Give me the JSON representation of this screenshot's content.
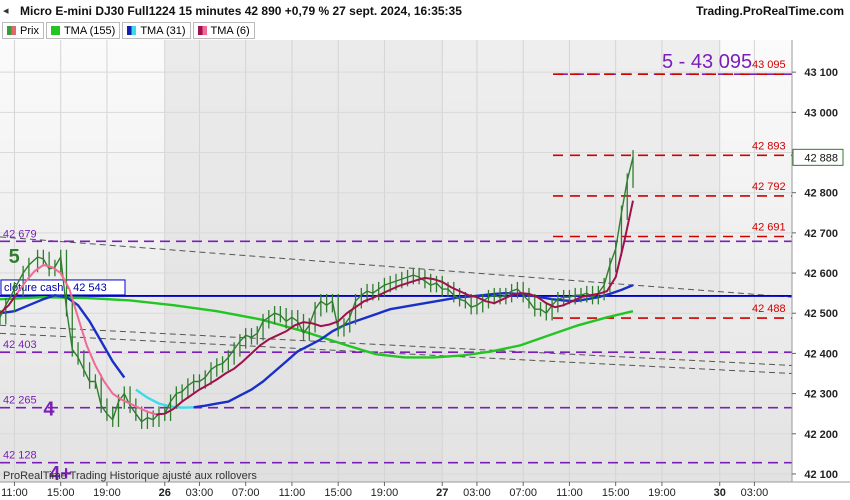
{
  "header": {
    "title": "Micro E-mini DJ30 Full1224 15 minutes 42 890 +0,79 % 27 sept. 2024, 16:35:35",
    "site": "Trading.ProRealTime.com"
  },
  "legend": [
    {
      "label": "Prix",
      "color": "#3c9a3c"
    },
    {
      "label": "TMA (155)",
      "color": "#22c522"
    },
    {
      "label": "TMA (31)",
      "color": "#1020b0"
    },
    {
      "label": "TMA (6)",
      "color": "#a0104a"
    }
  ],
  "footer": "ProRealTime Trading Historique ajusté aux rollovers",
  "colors": {
    "price": "#2f7d2f",
    "tma155": "#22c522",
    "tma31": "#1a2fc8",
    "tma31_cyan": "#3fd9ee",
    "tma6": "#a0104a",
    "tma6_pink": "#f06a96",
    "purple": "#7b1fb8",
    "red": "#d00000",
    "blue": "#0000cc"
  },
  "chart_data": {
    "type": "line",
    "instrument": "Micro E-mini DJ30 Full1224",
    "timeframe": "15 minutes",
    "ylim": [
      42080,
      43180
    ],
    "y_ticks": [
      42100,
      42200,
      42300,
      42400,
      42500,
      42600,
      42700,
      42800,
      42900,
      43000,
      43100
    ],
    "y_tick_labels": [
      "42 100",
      "42 200",
      "42 300",
      "42 400",
      "42 500",
      "42 600",
      "42 700",
      "42 800",
      "42 900",
      "43 000",
      "43 100"
    ],
    "x_ticks": [
      {
        "label": "11:00",
        "t": 0
      },
      {
        "label": "15:00",
        "t": 16
      },
      {
        "label": "19:00",
        "t": 32
      },
      {
        "label": "26",
        "t": 52,
        "bold": true
      },
      {
        "label": "03:00",
        "t": 64
      },
      {
        "label": "07:00",
        "t": 80
      },
      {
        "label": "11:00",
        "t": 96
      },
      {
        "label": "15:00",
        "t": 112
      },
      {
        "label": "19:00",
        "t": 128
      },
      {
        "label": "27",
        "t": 148,
        "bold": true
      },
      {
        "label": "03:00",
        "t": 160
      },
      {
        "label": "07:00",
        "t": 176
      },
      {
        "label": "11:00",
        "t": 192
      },
      {
        "label": "15:00",
        "t": 208
      },
      {
        "label": "19:00",
        "t": 224
      },
      {
        "label": "30",
        "t": 244,
        "bold": true
      },
      {
        "label": "03:00",
        "t": 256
      }
    ],
    "x_range": [
      -5,
      269
    ],
    "session_bands": [
      {
        "t0": 52,
        "t1": 148,
        "shade": "#dedede"
      },
      {
        "t0": 148,
        "t1": 244,
        "shade": "#e3e3e3"
      }
    ],
    "last_price": {
      "value": 42888,
      "label": "42 888"
    },
    "cash_close": {
      "value": 42543,
      "label": "clôture cash -  42 543"
    },
    "purple_levels": [
      {
        "value": 42679,
        "label": "42 679",
        "t_start": -5
      },
      {
        "value": 42403,
        "label": "42 403",
        "t_start": -5
      },
      {
        "value": 42265,
        "label": "42 265",
        "t_start": -5
      },
      {
        "value": 42128,
        "label": "42 128",
        "t_start": -5
      },
      {
        "value": 43095,
        "label": "5 - 43 095",
        "t_start": 188
      }
    ],
    "red_levels": [
      {
        "value": 43095,
        "label": "43 095"
      },
      {
        "value": 42893,
        "label": "42 893"
      },
      {
        "value": 42792,
        "label": "42 792"
      },
      {
        "value": 42691,
        "label": "42 691"
      },
      {
        "value": 42488,
        "label": "42 488"
      }
    ],
    "wave_labels": [
      {
        "text": "5",
        "t": -2,
        "y": 42645,
        "color": "#2f7d2f"
      },
      {
        "text": "4",
        "t": 10,
        "y": 42265,
        "color": "#7b1fb8"
      },
      {
        "text": "4+",
        "t": 12,
        "y": 42105,
        "color": "#7b1fb8"
      }
    ],
    "trendlines": [
      {
        "t0": -5,
        "y0": 42690,
        "t1": 269,
        "y1": 42540
      },
      {
        "t0": -5,
        "y0": 42470,
        "t1": 269,
        "y1": 42370
      },
      {
        "t0": -5,
        "y0": 42450,
        "t1": 269,
        "y1": 42350
      }
    ],
    "series": [
      {
        "key": "price",
        "name": "Prix",
        "x": [
          -5,
          -3,
          0,
          3,
          5,
          8,
          10,
          12,
          14,
          16,
          18,
          20,
          22,
          24,
          26,
          28,
          30,
          32,
          34,
          36,
          38,
          40,
          42,
          44,
          46,
          48,
          50,
          52,
          54,
          56,
          58,
          60,
          62,
          64,
          66,
          68,
          70,
          72,
          74,
          76,
          78,
          80,
          82,
          84,
          86,
          88,
          90,
          92,
          94,
          96,
          98,
          100,
          102,
          104,
          106,
          108,
          110,
          112,
          114,
          116,
          118,
          120,
          122,
          124,
          126,
          128,
          130,
          132,
          134,
          136,
          138,
          140,
          142,
          144,
          146,
          148,
          150,
          152,
          154,
          156,
          158,
          160,
          162,
          164,
          166,
          168,
          170,
          172,
          174,
          176,
          178,
          180,
          182,
          184,
          186,
          188,
          190,
          192,
          194,
          196,
          198,
          200,
          202,
          204,
          206,
          208,
          210,
          212,
          214
        ],
        "values": [
          42490,
          42520,
          42560,
          42600,
          42620,
          42640,
          42635,
          42610,
          42615,
          42640,
          42510,
          42410,
          42390,
          42360,
          42330,
          42330,
          42270,
          42250,
          42235,
          42280,
          42300,
          42270,
          42250,
          42230,
          42240,
          42235,
          42250,
          42250,
          42280,
          42300,
          42305,
          42320,
          42330,
          42330,
          42340,
          42360,
          42370,
          42375,
          42390,
          42410,
          42430,
          42445,
          42440,
          42450,
          42480,
          42490,
          42500,
          42495,
          42480,
          42490,
          42480,
          42450,
          42470,
          42510,
          42530,
          42520,
          42530,
          42460,
          42470,
          42490,
          42530,
          42545,
          42555,
          42550,
          42560,
          42570,
          42575,
          42580,
          42585,
          42590,
          42595,
          42590,
          42580,
          42570,
          42575,
          42560,
          42560,
          42545,
          42535,
          42530,
          42515,
          42520,
          42530,
          42540,
          42545,
          42540,
          42545,
          42555,
          42560,
          42545,
          42530,
          42510,
          42510,
          42500,
          42520,
          42535,
          42540,
          42540,
          42545,
          42545,
          42550,
          42540,
          42550,
          42570,
          42620,
          42660,
          42750,
          42830,
          42888
        ]
      },
      {
        "key": "tma155",
        "name": "TMA (155)",
        "x": [
          -5,
          10,
          25,
          40,
          55,
          70,
          85,
          100,
          115,
          125,
          135,
          145,
          155,
          165,
          175,
          185,
          195,
          205,
          214
        ],
        "values": [
          42535,
          42540,
          42538,
          42532,
          42520,
          42505,
          42485,
          42455,
          42420,
          42398,
          42390,
          42390,
          42395,
          42405,
          42420,
          42445,
          42470,
          42490,
          42505
        ]
      },
      {
        "key": "tma31",
        "name": "TMA (31)",
        "x": [
          -5,
          0,
          5,
          10,
          14,
          18,
          22,
          26,
          30,
          34,
          38,
          42,
          46,
          50,
          54,
          58,
          62,
          66,
          70,
          74,
          78,
          82,
          86,
          90,
          94,
          98,
          102,
          106,
          110,
          114,
          118,
          122,
          126,
          130,
          134,
          138,
          142,
          146,
          150,
          154,
          158,
          162,
          166,
          170,
          174,
          178,
          182,
          186,
          190,
          194,
          198,
          202,
          206,
          210,
          214
        ],
        "values": [
          42500,
          42505,
          42520,
          42535,
          42545,
          42540,
          42520,
          42480,
          42430,
          42380,
          42340,
          42310,
          42290,
          42275,
          42268,
          42265,
          42266,
          42270,
          42275,
          42280,
          42295,
          42310,
          42330,
          42355,
          42380,
          42405,
          42420,
          42435,
          42455,
          42470,
          42480,
          42490,
          42500,
          42510,
          42515,
          42520,
          42525,
          42530,
          42535,
          42540,
          42542,
          42545,
          42548,
          42550,
          42548,
          42545,
          42540,
          42535,
          42532,
          42530,
          42535,
          42540,
          42548,
          42558,
          42570
        ],
        "cyan_from": 40,
        "cyan_to": 62
      },
      {
        "key": "tma6",
        "name": "TMA (6)",
        "x": [
          -5,
          -2,
          1,
          4,
          7,
          10,
          13,
          16,
          19,
          22,
          25,
          28,
          31,
          34,
          37,
          40,
          43,
          46,
          49,
          52,
          55,
          58,
          61,
          64,
          67,
          70,
          73,
          76,
          79,
          82,
          85,
          88,
          91,
          94,
          97,
          100,
          103,
          106,
          109,
          112,
          115,
          118,
          121,
          124,
          127,
          130,
          133,
          136,
          139,
          142,
          145,
          148,
          151,
          154,
          157,
          160,
          163,
          166,
          169,
          172,
          175,
          178,
          181,
          184,
          187,
          190,
          193,
          196,
          199,
          202,
          205,
          208,
          211,
          214
        ],
        "values": [
          42500,
          42520,
          42550,
          42580,
          42605,
          42620,
          42615,
          42600,
          42560,
          42490,
          42420,
          42370,
          42330,
          42300,
          42285,
          42275,
          42265,
          42255,
          42248,
          42250,
          42262,
          42280,
          42295,
          42310,
          42322,
          42335,
          42350,
          42362,
          42380,
          42400,
          42420,
          42435,
          42445,
          42455,
          42470,
          42478,
          42475,
          42468,
          42472,
          42480,
          42500,
          42515,
          42530,
          42538,
          42548,
          42558,
          42568,
          42575,
          42582,
          42588,
          42585,
          42578,
          42565,
          42555,
          42545,
          42540,
          42530,
          42525,
          42535,
          42545,
          42550,
          42548,
          42540,
          42525,
          42515,
          42520,
          42530,
          42540,
          42545,
          42548,
          42555,
          42590,
          42680,
          42780
        ],
        "pink_from": 1,
        "pink_to": 49
      }
    ]
  }
}
